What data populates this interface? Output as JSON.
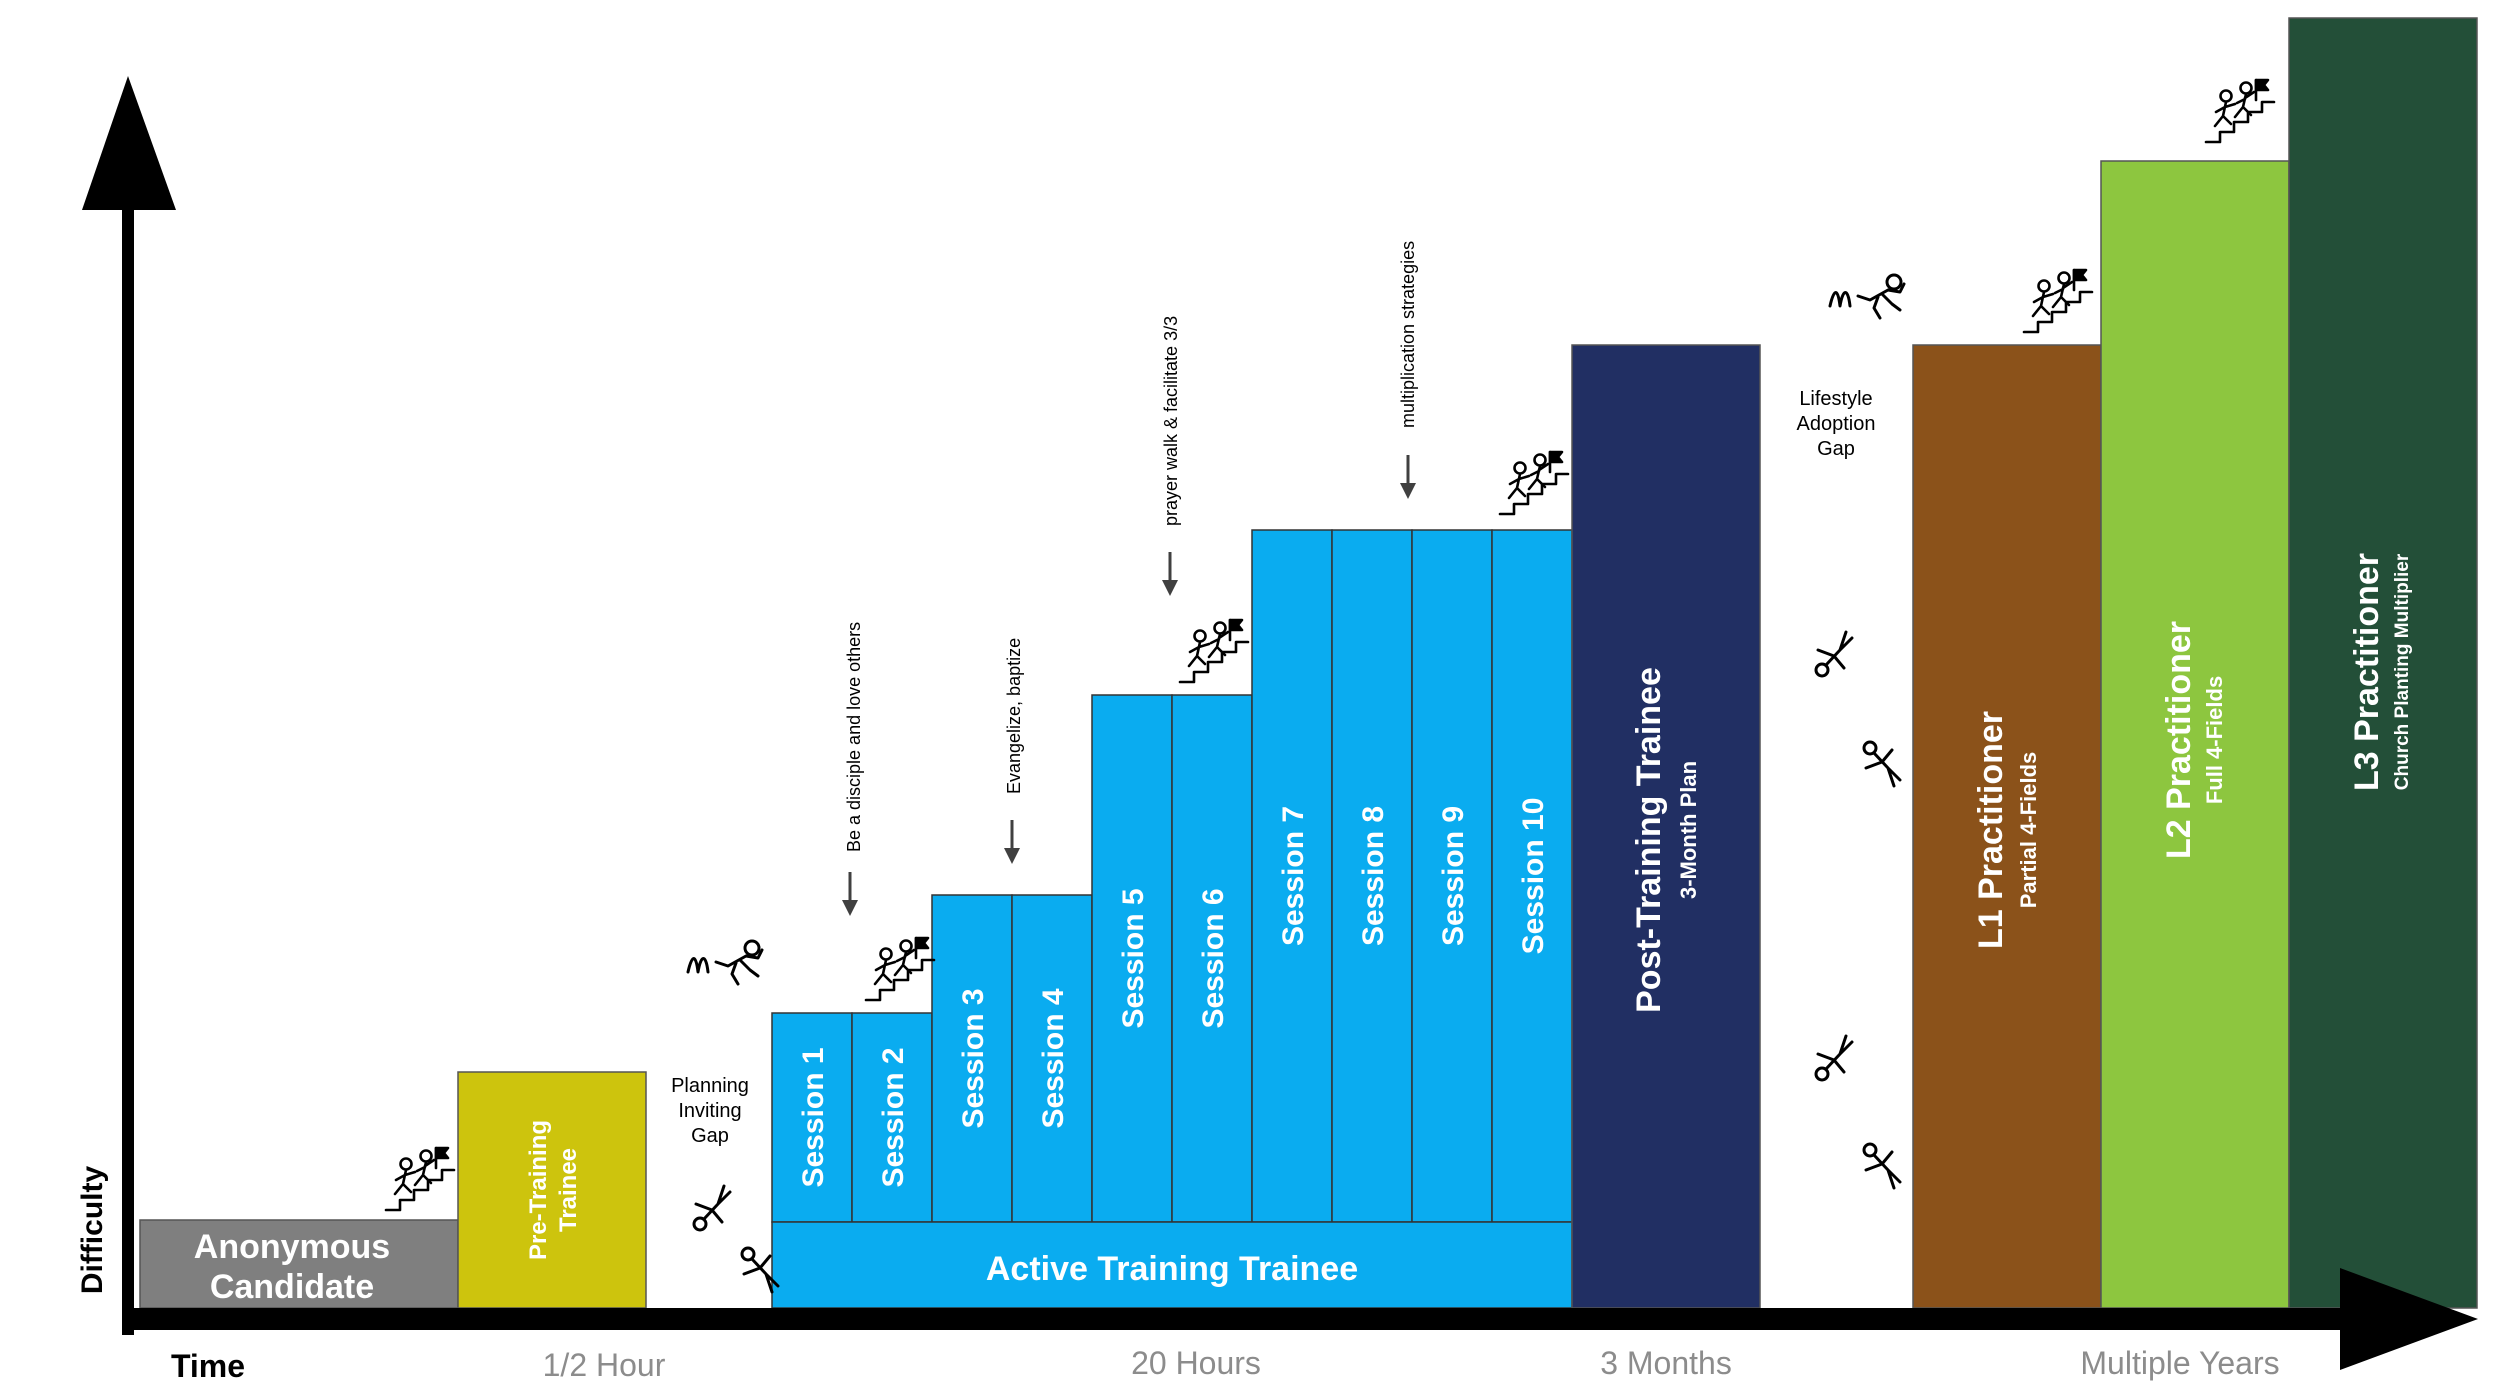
{
  "axes": {
    "x_label": "Time",
    "y_label": "Difficulty",
    "time_marks": [
      "1/2 Hour",
      "20 Hours",
      "3 Months",
      "Multiple Years"
    ]
  },
  "stages": {
    "anonymous": {
      "line1": "Anonymous",
      "line2": "Candidate",
      "color": "#7f7f7f"
    },
    "pre_training": {
      "line1": "Pre-Training",
      "line2": "Trainee",
      "color": "#cdc40d"
    },
    "sessions": [
      "Session 1",
      "Session 2",
      "Session 3",
      "Session 4",
      "Session 5",
      "Session 6",
      "Session 7",
      "Session 8",
      "Session 9",
      "Session 10"
    ],
    "session_color": "#0aacf0",
    "active_training": {
      "label": "Active Training Trainee",
      "color": "#0aacf0"
    },
    "post_training": {
      "title": "Post-Training Trainee",
      "subtitle": "3-Month Plan",
      "color": "#212f63"
    },
    "l1": {
      "title": "L1 Practitioner",
      "subtitle": "Partial 4-Fields",
      "color": "#8b521a"
    },
    "l2": {
      "title": "L2 Practitioner",
      "subtitle": "Full 4-Fields",
      "color": "#8dc63f"
    },
    "l3": {
      "title": "L3 Practitioner",
      "subtitle": "Church Planting Multiplier",
      "color": "#234f38"
    }
  },
  "gaps": {
    "planning": {
      "line1": "Planning",
      "line2": "Inviting",
      "line3": "Gap"
    },
    "lifestyle": {
      "line1": "Lifestyle",
      "line2": "Adoption",
      "line3": "Gap"
    }
  },
  "annotations": {
    "a1": "Be a disciple and love others",
    "a2": "Evangelize, baptize",
    "a3": "prayer walk & facilitate 3/3",
    "a4": "multiplication strategies"
  },
  "icons": {
    "climber": "stair-climber-icon",
    "jumper": "leaping-figure-icon",
    "faller": "falling-figure-icon"
  }
}
